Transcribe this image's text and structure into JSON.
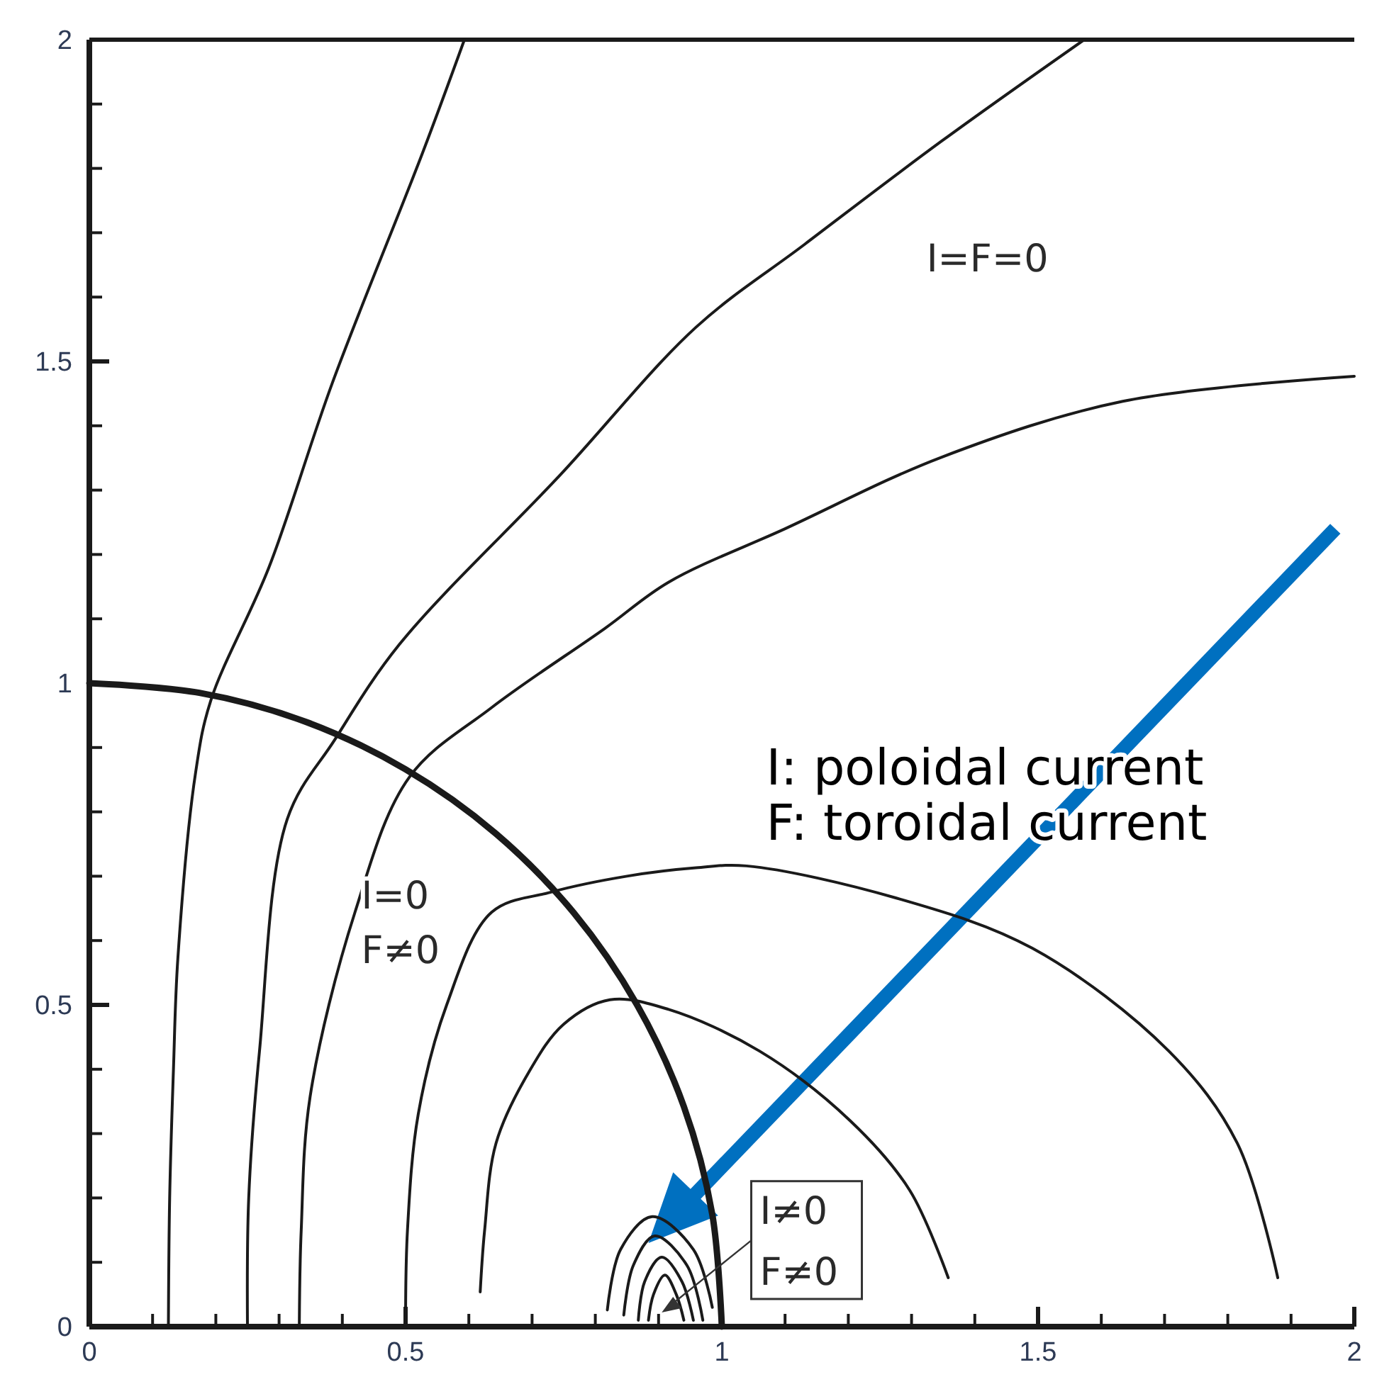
{
  "chart_data": {
    "type": "line",
    "xlim": [
      0,
      2
    ],
    "ylim": [
      0,
      2
    ],
    "xticks": [
      0,
      {
        "value": 0.1,
        "label": null
      },
      {
        "value": 0.2,
        "label": null
      },
      {
        "value": 0.3,
        "label": null
      },
      {
        "value": 0.4,
        "label": null
      },
      0.5,
      {
        "value": 0.6,
        "label": null
      },
      {
        "value": 0.7,
        "label": null
      },
      {
        "value": 0.8,
        "label": null
      },
      {
        "value": 0.9,
        "label": null
      },
      1,
      {
        "value": 1.1,
        "label": null
      },
      {
        "value": 1.2,
        "label": null
      },
      {
        "value": 1.3,
        "label": null
      },
      {
        "value": 1.4,
        "label": null
      },
      1.5,
      {
        "value": 1.6,
        "label": null
      },
      {
        "value": 1.7,
        "label": null
      },
      {
        "value": 1.8,
        "label": null
      },
      {
        "value": 1.9,
        "label": null
      },
      2
    ],
    "yticks": [
      0,
      {
        "value": 0.1,
        "label": null
      },
      {
        "value": 0.2,
        "label": null
      },
      {
        "value": 0.3,
        "label": null
      },
      {
        "value": 0.4,
        "label": null
      },
      0.5,
      {
        "value": 0.6,
        "label": null
      },
      {
        "value": 0.7,
        "label": null
      },
      {
        "value": 0.8,
        "label": null
      },
      {
        "value": 0.9,
        "label": null
      },
      1,
      {
        "value": 1.1,
        "label": null
      },
      {
        "value": 1.2,
        "label": null
      },
      {
        "value": 1.3,
        "label": null
      },
      {
        "value": 1.4,
        "label": null
      },
      1.5,
      {
        "value": 1.6,
        "label": null
      },
      {
        "value": 1.7,
        "label": null
      },
      {
        "value": 1.8,
        "label": null
      },
      {
        "value": 1.9,
        "label": null
      },
      2
    ],
    "grid": false,
    "marker": "none",
    "line_style": "solid",
    "series": [
      {
        "color": "#1a1a1a",
        "x": [
          0,
          0.174,
          0.342,
          0.5,
          0.643,
          0.766,
          0.866,
          0.94,
          0.985,
          1
        ],
        "values": [
          1,
          0.985,
          0.94,
          0.866,
          0.766,
          0.643,
          0.5,
          0.342,
          0.174,
          0
        ]
      },
      {
        "color": "#1a1a1a",
        "x": [
          0.125,
          0.127,
          0.133,
          0.14,
          0.168,
          0.192,
          0.284,
          0.384,
          0.528,
          0.593
        ],
        "values": [
          0,
          0.2,
          0.4,
          0.573,
          0.861,
          0.973,
          1.18,
          1.466,
          1.827,
          2
        ]
      },
      {
        "color": "#1a1a1a",
        "x": [
          0.25,
          0.252,
          0.269,
          0.313,
          0.388,
          0.49,
          0.744,
          0.959,
          1.131,
          1.347,
          1.573
        ],
        "values": [
          0,
          0.2,
          0.428,
          0.789,
          0.912,
          1.06,
          1.323,
          1.553,
          1.682,
          1.842,
          2
        ]
      },
      {
        "color": "#1a1a1a",
        "x": [
          0.332,
          0.335,
          0.349,
          0.42,
          0.506,
          0.636,
          0.815,
          0.916,
          1.1,
          1.347,
          1.634,
          2
        ],
        "values": [
          0.005,
          0.15,
          0.357,
          0.644,
          0.854,
          0.962,
          1.085,
          1.157,
          1.24,
          1.351,
          1.438,
          1.477
        ]
      },
      {
        "color": "#1a1a1a",
        "x": [
          0.5,
          0.503,
          0.52,
          0.565,
          0.636,
          0.729,
          0.85,
          0.959,
          1.039,
          1.276,
          1.491,
          1.707,
          1.815,
          1.879
        ],
        "values": [
          0,
          0.15,
          0.33,
          0.5,
          0.644,
          0.675,
          0.7,
          0.713,
          0.716,
          0.666,
          0.588,
          0.428,
          0.285,
          0.076
        ]
      },
      {
        "color": "#1a1a1a",
        "x": [
          0.618,
          0.625,
          0.643,
          0.694,
          0.75,
          0.823,
          0.916,
          1.06,
          1.203,
          1.297,
          1.358
        ],
        "values": [
          0.054,
          0.15,
          0.285,
          0.394,
          0.47,
          0.508,
          0.493,
          0.428,
          0.32,
          0.212,
          0.076
        ]
      },
      {
        "color": "#1a1a1a",
        "x": [
          0.819,
          0.84,
          0.89,
          0.955,
          0.985
        ],
        "values": [
          0.026,
          0.12,
          0.171,
          0.12,
          0.03
        ]
      },
      {
        "color": "#1a1a1a",
        "x": [
          0.845,
          0.86,
          0.894,
          0.945,
          0.97
        ],
        "values": [
          0.018,
          0.095,
          0.141,
          0.095,
          0.01
        ]
      },
      {
        "color": "#1a1a1a",
        "x": [
          0.868,
          0.878,
          0.905,
          0.937,
          0.955
        ],
        "values": [
          0.01,
          0.07,
          0.108,
          0.07,
          0.01
        ]
      },
      {
        "color": "#1a1a1a",
        "x": [
          0.884,
          0.892,
          0.91,
          0.928,
          0.94
        ],
        "values": [
          0.01,
          0.05,
          0.08,
          0.05,
          0.01
        ]
      }
    ],
    "annotations": [
      "I=F=0",
      "I=0",
      "F≠0",
      "I≠0",
      "F≠0",
      "I: poloidal current",
      "F: toroidal current"
    ]
  }
}
